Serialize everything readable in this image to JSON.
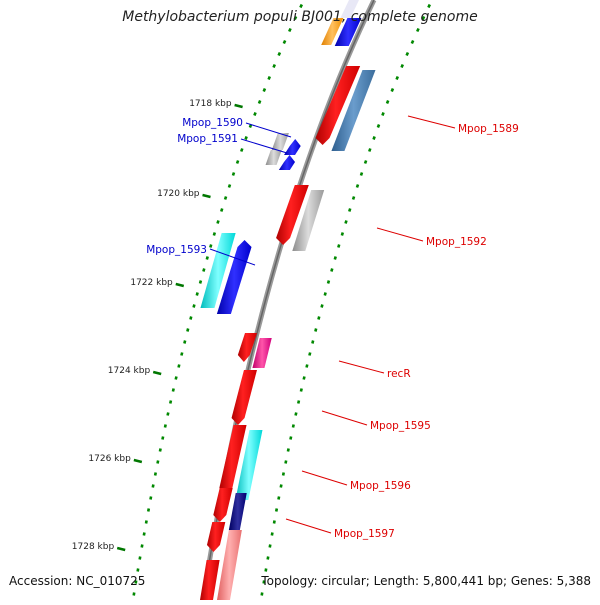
{
  "title": "Methylobacterium populi BJ001, complete genome",
  "footer": {
    "accession": "Accession: NC_010725",
    "topology": "Topology: circular; Length: 5,800,441 bp; Genes: 5,388"
  },
  "axis": {
    "unit": "kbp",
    "ticks": [
      {
        "label": "1718 kbp"
      },
      {
        "label": "1720 kbp"
      },
      {
        "label": "1722 kbp"
      },
      {
        "label": "1724 kbp"
      },
      {
        "label": "1726 kbp"
      },
      {
        "label": "1728 kbp"
      }
    ]
  },
  "gene_labels": {
    "mpop_1589": "Mpop_1589",
    "mpop_1590": "Mpop_1590",
    "mpop_1591": "Mpop_1591",
    "mpop_1592": "Mpop_1592",
    "mpop_1593": "Mpop_1593",
    "recR": "recR",
    "mpop_1595": "Mpop_1595",
    "mpop_1596": "Mpop_1596",
    "mpop_1597": "Mpop_1597"
  },
  "colors": {
    "forward_label": "#0000cc",
    "reverse_label": "#dd0000",
    "tick_green": "#007700",
    "backbone": "#808080",
    "red": "#ff0000",
    "steelblue": "#4682b4",
    "grey": "#b0b0b0",
    "cyan": "#00ffff",
    "blue": "#0000ff",
    "magenta": "#ff1493",
    "navy": "#000080",
    "pink": "#ff8080",
    "orange": "#ffa500"
  }
}
